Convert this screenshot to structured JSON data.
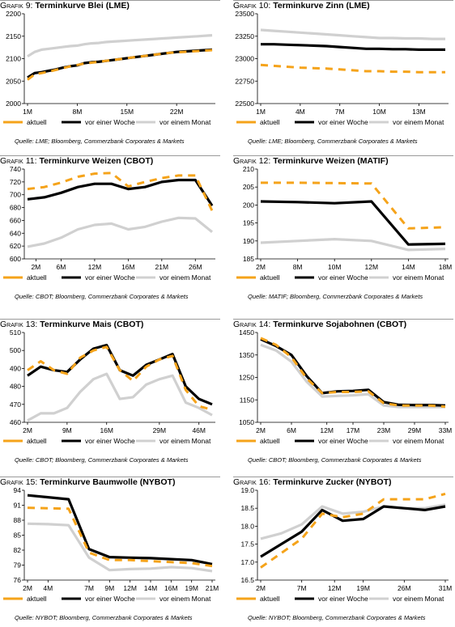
{
  "colors": {
    "aktuell": "#f5a31a",
    "woche": "#000000",
    "monat": "#d0d0d0"
  },
  "legend": [
    "aktuell",
    "vor einer Woche",
    "vor einem Monat"
  ],
  "chart_data": [
    {
      "type": "line",
      "title_prefix": "Grafik 9:",
      "title": "Terminkurve Blei (LME)",
      "source": "Quelle: LME; Bloomberg, Commerzbank Corporates & Markets",
      "categories": [
        "1M",
        "2M",
        "3M",
        "4M",
        "5M",
        "6M",
        "7M",
        "8M",
        "9M",
        "10M",
        "11M",
        "12M",
        "13M",
        "14M",
        "15M",
        "16M",
        "17M",
        "18M",
        "19M",
        "20M",
        "21M",
        "22M",
        "23M",
        "24M",
        "25M",
        "26M",
        "27M"
      ],
      "xticks": [
        "1M",
        "8M",
        "15M",
        "22M"
      ],
      "ylim": [
        2000,
        2200
      ],
      "yticks": [
        "2000",
        "2050",
        "2100",
        "2150",
        "2200"
      ],
      "series": [
        {
          "name": "aktuell",
          "values": [
            2053,
            2065,
            2068,
            2071,
            2075,
            2079,
            2083,
            2086,
            2089,
            2091,
            2093,
            2095,
            2097,
            2099,
            2101,
            2103,
            2105,
            2107,
            2109,
            2111,
            2113,
            2114,
            2115,
            2116,
            2117,
            2118,
            2119
          ]
        },
        {
          "name": "vor einer Woche",
          "values": [
            2058,
            2068,
            2070,
            2073,
            2076,
            2080,
            2083,
            2085,
            2090,
            2092,
            2093,
            2095,
            2097,
            2099,
            2101,
            2103,
            2105,
            2107,
            2109,
            2111,
            2113,
            2115,
            2116,
            2117,
            2118,
            2119,
            2120
          ]
        },
        {
          "name": "vor einem Monat",
          "values": [
            2105,
            2115,
            2120,
            2122,
            2124,
            2126,
            2128,
            2129,
            2132,
            2134,
            2135,
            2137,
            2138,
            2139,
            2140,
            2141,
            2142,
            2143,
            2144,
            2145,
            2146,
            2147,
            2148,
            2149,
            2150,
            2151,
            2152
          ]
        }
      ]
    },
    {
      "type": "line",
      "title_prefix": "Grafik 10:",
      "title": "Terminkurve Zinn (LME)",
      "source": "Quelle: LME; Bloomberg, Commerzbank Corporates & Markets",
      "categories": [
        "1M",
        "2M",
        "3M",
        "4M",
        "5M",
        "6M",
        "7M",
        "8M",
        "9M",
        "10M",
        "11M",
        "12M",
        "13M",
        "14M",
        "15M"
      ],
      "xticks": [
        "1M",
        "4M",
        "7M",
        "10M",
        "13M"
      ],
      "ylim": [
        22500,
        23500
      ],
      "yticks": [
        "22500",
        "22750",
        "23000",
        "23250",
        "23500"
      ],
      "series": [
        {
          "name": "aktuell",
          "values": [
            22930,
            22920,
            22910,
            22900,
            22895,
            22890,
            22880,
            22870,
            22860,
            22860,
            22855,
            22855,
            22850,
            22850,
            22850
          ]
        },
        {
          "name": "vor einer Woche",
          "values": [
            23160,
            23160,
            23155,
            23150,
            23145,
            23140,
            23130,
            23120,
            23110,
            23110,
            23105,
            23105,
            23100,
            23100,
            23100
          ]
        },
        {
          "name": "vor einem Monat",
          "values": [
            23320,
            23310,
            23300,
            23290,
            23280,
            23270,
            23260,
            23250,
            23240,
            23230,
            23230,
            23225,
            23225,
            23220,
            23220
          ]
        }
      ]
    },
    {
      "type": "line",
      "title_prefix": "Grafik 11:",
      "title": "Terminkurve Weizen (CBOT)",
      "source": "Quelle: CBOT; Bloomberg, Commerzbank Corporates & Markets",
      "categories": [
        "1M",
        "4M",
        "6M",
        "9M",
        "12M",
        "14M",
        "16M",
        "19M",
        "21M",
        "24M",
        "26M",
        "29M"
      ],
      "xticks": [
        "2M",
        "6M",
        "12M",
        "16M",
        "21M",
        "26M"
      ],
      "xtick_index": [
        0.5,
        2,
        4,
        6,
        8,
        10
      ],
      "ylim": [
        600,
        740
      ],
      "yticks": [
        "600",
        "620",
        "640",
        "660",
        "680",
        "700",
        "720",
        "740"
      ],
      "series": [
        {
          "name": "aktuell",
          "values": [
            709,
            712,
            719,
            728,
            733,
            734,
            713,
            720,
            726,
            730,
            730,
            675
          ]
        },
        {
          "name": "vor einer Woche",
          "values": [
            693,
            696,
            703,
            712,
            717,
            717,
            709,
            712,
            720,
            723,
            723,
            683
          ]
        },
        {
          "name": "vor einem Monat",
          "values": [
            619,
            624,
            633,
            646,
            653,
            655,
            646,
            650,
            658,
            664,
            663,
            642
          ]
        }
      ]
    },
    {
      "type": "line",
      "title_prefix": "Grafik 12:",
      "title": "Terminkurve Weizen (MATIF)",
      "source": "Quelle: MATIF; Bloomberg, Commerzbank Corporates & Markets",
      "categories": [
        "2M",
        "8M",
        "10M",
        "12M",
        "14M",
        "18M"
      ],
      "xticks": [
        "2M",
        "8M",
        "10M",
        "12M",
        "14M",
        "18M"
      ],
      "ylim": [
        185,
        210
      ],
      "yticks": [
        "185",
        "190",
        "195",
        "200",
        "205",
        "210"
      ],
      "series": [
        {
          "name": "aktuell",
          "values": [
            206.2,
            206.2,
            206.1,
            206.0,
            193.5,
            193.8
          ]
        },
        {
          "name": "vor einer Woche",
          "values": [
            201.0,
            200.8,
            200.5,
            201.0,
            189.0,
            189.2
          ]
        },
        {
          "name": "vor einem Monat",
          "values": [
            189.5,
            190.0,
            190.5,
            190.0,
            187.5,
            187.8
          ]
        }
      ]
    },
    {
      "type": "line",
      "title_prefix": "Grafik 13:",
      "title": "Terminkurve Mais (CBOT)",
      "source": "Quelle: CBOT; Bloomberg, Commerzbank Corporates & Markets",
      "categories": [
        "2M",
        "4M",
        "6M",
        "9M",
        "11M",
        "14M",
        "16M",
        "19M",
        "21M",
        "26M",
        "29M",
        "33M",
        "38M",
        "46M",
        "48M"
      ],
      "xticks": [
        "2M",
        "9M",
        "16M",
        "29M",
        "46M"
      ],
      "xtick_index": [
        0,
        3,
        6,
        10,
        13
      ],
      "ylim": [
        460,
        510
      ],
      "yticks": [
        "460",
        "470",
        "480",
        "490",
        "500",
        "510"
      ],
      "series": [
        {
          "name": "aktuell",
          "values": [
            489,
            494,
            489,
            487,
            496,
            500,
            502,
            489,
            483,
            491,
            495,
            497,
            478,
            469,
            467
          ]
        },
        {
          "name": "vor einer Woche",
          "values": [
            486,
            491,
            489,
            488,
            495,
            501,
            503,
            489,
            486,
            492,
            495,
            498,
            480,
            473,
            470
          ]
        },
        {
          "name": "vor einem Monat",
          "values": [
            461,
            465,
            465,
            468,
            477,
            484,
            487,
            473,
            474,
            481,
            484,
            486,
            471,
            468,
            464
          ]
        }
      ]
    },
    {
      "type": "line",
      "title_prefix": "Grafik 14:",
      "title": "Terminkurve Sojabohnen (CBOT)",
      "source": "Quelle: CBOT; Bloomberg, Commerzbank Corporates & Markets",
      "categories": [
        "2M",
        "4M",
        "6M",
        "8M",
        "11M",
        "14M",
        "17M",
        "20M",
        "23M",
        "26M",
        "29M",
        "32M",
        "33M"
      ],
      "xticks": [
        "2M",
        "6M",
        "12M",
        "17M",
        "23M",
        "29M",
        "33M"
      ],
      "xtick_index": [
        0,
        2,
        4.3,
        6,
        8,
        10,
        12
      ],
      "ylim": [
        1050,
        1450
      ],
      "yticks": [
        "1050",
        "1150",
        "1250",
        "1350",
        "1450"
      ],
      "series": [
        {
          "name": "aktuell",
          "values": [
            1425,
            1395,
            1340,
            1245,
            1180,
            1185,
            1185,
            1188,
            1135,
            1125,
            1125,
            1125,
            1120
          ]
        },
        {
          "name": "vor einer Woche",
          "values": [
            1420,
            1390,
            1350,
            1255,
            1180,
            1188,
            1190,
            1195,
            1140,
            1128,
            1127,
            1127,
            1125
          ]
        },
        {
          "name": "vor einem Monat",
          "values": [
            1395,
            1370,
            1320,
            1230,
            1165,
            1168,
            1170,
            1175,
            1125,
            1118,
            1118,
            1118,
            1118
          ]
        }
      ]
    },
    {
      "type": "line",
      "title_prefix": "Grafik 15:",
      "title": "Terminkurve Baumwolle (NYBOT)",
      "source": "Quelle: NYBOT; Bloomberg, Commerzbank Corporates & Markets",
      "categories": [
        "2M",
        "4M",
        "5M",
        "7M",
        "9M",
        "12M",
        "14M",
        "16M",
        "19M",
        "21M"
      ],
      "xticks": [
        "2M",
        "4M",
        "7M",
        "9M",
        "12M",
        "14M",
        "16M",
        "19M",
        "21M"
      ],
      "xtick_index": [
        0,
        1,
        3,
        4,
        5,
        6,
        7,
        8,
        9
      ],
      "ylim": [
        76,
        94
      ],
      "yticks": [
        "76",
        "79",
        "82",
        "85",
        "88",
        "91",
        "94"
      ],
      "series": [
        {
          "name": "aktuell",
          "values": [
            90.5,
            90.4,
            90.3,
            81.5,
            80.0,
            80.0,
            79.8,
            79.6,
            79.4,
            78.8
          ]
        },
        {
          "name": "vor einer Woche",
          "values": [
            93.0,
            92.6,
            92.2,
            82.2,
            80.6,
            80.5,
            80.4,
            80.2,
            80.0,
            79.2
          ]
        },
        {
          "name": "vor einem Monat",
          "values": [
            87.3,
            87.2,
            87.0,
            80.5,
            78.0,
            78.2,
            78.3,
            78.6,
            78.4,
            77.8
          ]
        }
      ]
    },
    {
      "type": "line",
      "title_prefix": "Grafik 16:",
      "title": "Terminkurve Zucker (NYBOT)",
      "source": "Quelle: NYBOT; Bloomberg, Commerzbank Corporates & Markets",
      "categories": [
        "2M",
        "4M",
        "7M",
        "10M",
        "15M",
        "19M",
        "21M",
        "26M",
        "29M",
        "31M"
      ],
      "xticks": [
        "2M",
        "7M",
        "12M",
        "19M",
        "26M",
        "31M"
      ],
      "xtick_index": [
        0,
        2,
        3.6,
        5,
        7,
        9
      ],
      "ylim": [
        16.5,
        19.0
      ],
      "yticks": [
        "16.5",
        "17.0",
        "17.5",
        "18.0",
        "18.5",
        "19.0"
      ],
      "series": [
        {
          "name": "aktuell",
          "values": [
            16.85,
            17.25,
            17.65,
            18.35,
            18.25,
            18.35,
            18.75,
            18.75,
            18.75,
            18.9
          ]
        },
        {
          "name": "vor einer Woche",
          "values": [
            17.15,
            17.5,
            17.85,
            18.45,
            18.15,
            18.2,
            18.55,
            18.5,
            18.45,
            18.55
          ]
        },
        {
          "name": "vor einem Monat",
          "values": [
            17.65,
            17.8,
            18.05,
            18.55,
            18.35,
            18.4,
            18.55,
            18.5,
            18.5,
            18.6
          ]
        }
      ]
    }
  ]
}
